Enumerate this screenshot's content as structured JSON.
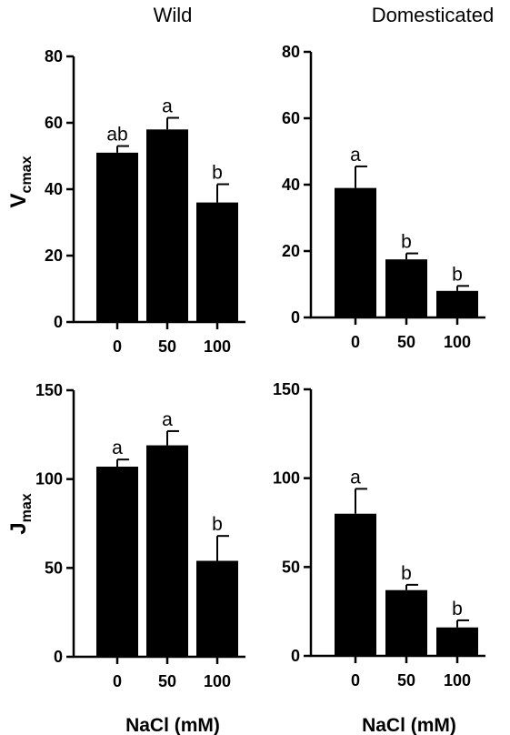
{
  "column_titles": [
    "Wild",
    "Domesticated"
  ],
  "row_ylabels": [
    {
      "main": "V",
      "sub": "cmax"
    },
    {
      "main": "J",
      "sub": "max"
    }
  ],
  "xlabel": "NaCl (mM)",
  "colors": {
    "bar": "#000000",
    "axis": "#000000",
    "background": "#ffffff"
  },
  "chart_data": [
    {
      "type": "bar",
      "title": "Wild",
      "ylabel": "Vcmax",
      "xlabel": "",
      "categories": [
        "0",
        "50",
        "100"
      ],
      "values": [
        51,
        58,
        36
      ],
      "errors": [
        2,
        3.5,
        5.5
      ],
      "letters": [
        "ab",
        "a",
        "b"
      ],
      "ylim": [
        0,
        80
      ],
      "yticks": [
        0,
        20,
        40,
        60,
        80
      ],
      "grid": false
    },
    {
      "type": "bar",
      "title": "Domesticated",
      "ylabel": "",
      "xlabel": "",
      "categories": [
        "0",
        "50",
        "100"
      ],
      "values": [
        39,
        17.5,
        8
      ],
      "errors": [
        6.5,
        1.8,
        1.5
      ],
      "letters": [
        "a",
        "b",
        "b"
      ],
      "ylim": [
        0,
        80
      ],
      "yticks": [
        0,
        20,
        40,
        60,
        80
      ],
      "grid": false
    },
    {
      "type": "bar",
      "title": "",
      "ylabel": "Jmax",
      "xlabel": "NaCl (mM)",
      "categories": [
        "0",
        "50",
        "100"
      ],
      "values": [
        107,
        119,
        54
      ],
      "errors": [
        4,
        8,
        14
      ],
      "letters": [
        "a",
        "a",
        "b"
      ],
      "ylim": [
        0,
        150
      ],
      "yticks": [
        0,
        50,
        100,
        150
      ],
      "grid": false
    },
    {
      "type": "bar",
      "title": "",
      "ylabel": "",
      "xlabel": "NaCl (mM)",
      "categories": [
        "0",
        "50",
        "100"
      ],
      "values": [
        80,
        37,
        16
      ],
      "errors": [
        14,
        3,
        4
      ],
      "letters": [
        "a",
        "b",
        "b"
      ],
      "ylim": [
        0,
        150
      ],
      "yticks": [
        0,
        50,
        100,
        150
      ],
      "grid": false
    }
  ]
}
